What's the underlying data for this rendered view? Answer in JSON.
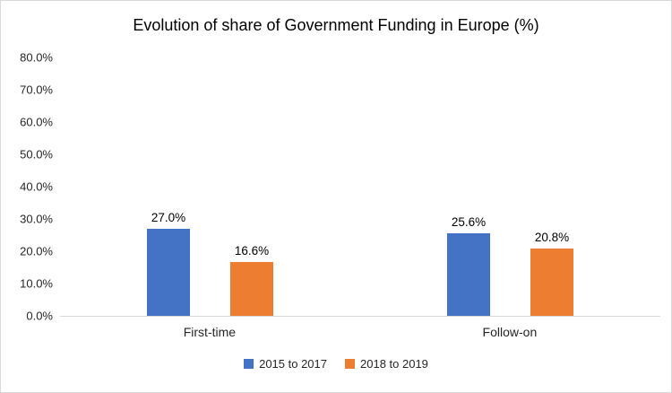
{
  "chart_data": {
    "type": "bar",
    "title": "Evolution of share of Government Funding in Europe (%)",
    "categories": [
      "First-time",
      "Follow-on"
    ],
    "series": [
      {
        "name": "2015 to 2017",
        "color": "#4472C4",
        "values": [
          27.0,
          25.6
        ],
        "labels": [
          "27.0%",
          "25.6%"
        ]
      },
      {
        "name": "2018 to 2019",
        "color": "#ED7D31",
        "values": [
          16.6,
          20.8
        ],
        "labels": [
          "16.6%",
          "20.8%"
        ]
      }
    ],
    "ylim": [
      0,
      80
    ],
    "yticks": [
      {
        "value": 0,
        "label": "0.0%"
      },
      {
        "value": 10,
        "label": "10.0%"
      },
      {
        "value": 20,
        "label": "20.0%"
      },
      {
        "value": 30,
        "label": "30.0%"
      },
      {
        "value": 40,
        "label": "40.0%"
      },
      {
        "value": 50,
        "label": "50.0%"
      },
      {
        "value": 60,
        "label": "60.0%"
      },
      {
        "value": 70,
        "label": "70.0%"
      },
      {
        "value": 80,
        "label": "80.0%"
      }
    ],
    "grid": false,
    "legend_position": "bottom",
    "axis_line_color": "#d9d9d9"
  }
}
